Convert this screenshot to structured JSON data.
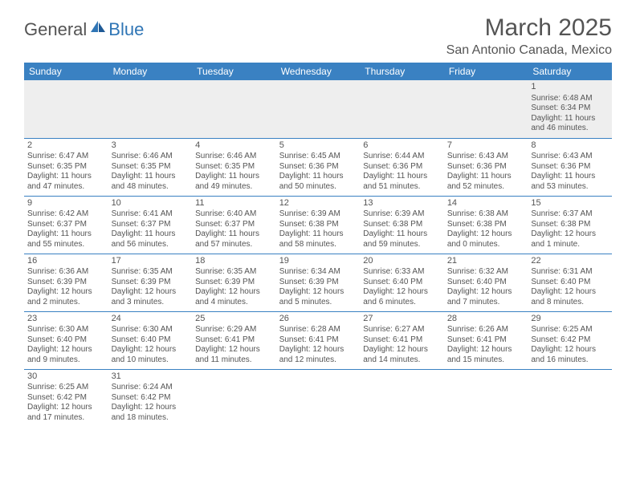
{
  "logo": {
    "general": "General",
    "blue": "Blue"
  },
  "title": "March 2025",
  "location": "San Antonio Canada, Mexico",
  "colors": {
    "header_bg": "#3a81c2",
    "header_text": "#ffffff",
    "text": "#545454",
    "row_divider": "#3a81c2",
    "blank_bg": "#eeeeee",
    "logo_blue": "#2f75b5"
  },
  "days_of_week": [
    "Sunday",
    "Monday",
    "Tuesday",
    "Wednesday",
    "Thursday",
    "Friday",
    "Saturday"
  ],
  "weeks": [
    [
      null,
      null,
      null,
      null,
      null,
      null,
      {
        "n": "1",
        "sr": "6:48 AM",
        "ss": "6:34 PM",
        "dl": "11 hours and 46 minutes."
      }
    ],
    [
      {
        "n": "2",
        "sr": "6:47 AM",
        "ss": "6:35 PM",
        "dl": "11 hours and 47 minutes."
      },
      {
        "n": "3",
        "sr": "6:46 AM",
        "ss": "6:35 PM",
        "dl": "11 hours and 48 minutes."
      },
      {
        "n": "4",
        "sr": "6:46 AM",
        "ss": "6:35 PM",
        "dl": "11 hours and 49 minutes."
      },
      {
        "n": "5",
        "sr": "6:45 AM",
        "ss": "6:36 PM",
        "dl": "11 hours and 50 minutes."
      },
      {
        "n": "6",
        "sr": "6:44 AM",
        "ss": "6:36 PM",
        "dl": "11 hours and 51 minutes."
      },
      {
        "n": "7",
        "sr": "6:43 AM",
        "ss": "6:36 PM",
        "dl": "11 hours and 52 minutes."
      },
      {
        "n": "8",
        "sr": "6:43 AM",
        "ss": "6:36 PM",
        "dl": "11 hours and 53 minutes."
      }
    ],
    [
      {
        "n": "9",
        "sr": "6:42 AM",
        "ss": "6:37 PM",
        "dl": "11 hours and 55 minutes."
      },
      {
        "n": "10",
        "sr": "6:41 AM",
        "ss": "6:37 PM",
        "dl": "11 hours and 56 minutes."
      },
      {
        "n": "11",
        "sr": "6:40 AM",
        "ss": "6:37 PM",
        "dl": "11 hours and 57 minutes."
      },
      {
        "n": "12",
        "sr": "6:39 AM",
        "ss": "6:38 PM",
        "dl": "11 hours and 58 minutes."
      },
      {
        "n": "13",
        "sr": "6:39 AM",
        "ss": "6:38 PM",
        "dl": "11 hours and 59 minutes."
      },
      {
        "n": "14",
        "sr": "6:38 AM",
        "ss": "6:38 PM",
        "dl": "12 hours and 0 minutes."
      },
      {
        "n": "15",
        "sr": "6:37 AM",
        "ss": "6:38 PM",
        "dl": "12 hours and 1 minute."
      }
    ],
    [
      {
        "n": "16",
        "sr": "6:36 AM",
        "ss": "6:39 PM",
        "dl": "12 hours and 2 minutes."
      },
      {
        "n": "17",
        "sr": "6:35 AM",
        "ss": "6:39 PM",
        "dl": "12 hours and 3 minutes."
      },
      {
        "n": "18",
        "sr": "6:35 AM",
        "ss": "6:39 PM",
        "dl": "12 hours and 4 minutes."
      },
      {
        "n": "19",
        "sr": "6:34 AM",
        "ss": "6:39 PM",
        "dl": "12 hours and 5 minutes."
      },
      {
        "n": "20",
        "sr": "6:33 AM",
        "ss": "6:40 PM",
        "dl": "12 hours and 6 minutes."
      },
      {
        "n": "21",
        "sr": "6:32 AM",
        "ss": "6:40 PM",
        "dl": "12 hours and 7 minutes."
      },
      {
        "n": "22",
        "sr": "6:31 AM",
        "ss": "6:40 PM",
        "dl": "12 hours and 8 minutes."
      }
    ],
    [
      {
        "n": "23",
        "sr": "6:30 AM",
        "ss": "6:40 PM",
        "dl": "12 hours and 9 minutes."
      },
      {
        "n": "24",
        "sr": "6:30 AM",
        "ss": "6:40 PM",
        "dl": "12 hours and 10 minutes."
      },
      {
        "n": "25",
        "sr": "6:29 AM",
        "ss": "6:41 PM",
        "dl": "12 hours and 11 minutes."
      },
      {
        "n": "26",
        "sr": "6:28 AM",
        "ss": "6:41 PM",
        "dl": "12 hours and 12 minutes."
      },
      {
        "n": "27",
        "sr": "6:27 AM",
        "ss": "6:41 PM",
        "dl": "12 hours and 14 minutes."
      },
      {
        "n": "28",
        "sr": "6:26 AM",
        "ss": "6:41 PM",
        "dl": "12 hours and 15 minutes."
      },
      {
        "n": "29",
        "sr": "6:25 AM",
        "ss": "6:42 PM",
        "dl": "12 hours and 16 minutes."
      }
    ],
    [
      {
        "n": "30",
        "sr": "6:25 AM",
        "ss": "6:42 PM",
        "dl": "12 hours and 17 minutes."
      },
      {
        "n": "31",
        "sr": "6:24 AM",
        "ss": "6:42 PM",
        "dl": "12 hours and 18 minutes."
      },
      null,
      null,
      null,
      null,
      null
    ]
  ],
  "labels": {
    "sunrise": "Sunrise:",
    "sunset": "Sunset:",
    "daylight": "Daylight:"
  }
}
